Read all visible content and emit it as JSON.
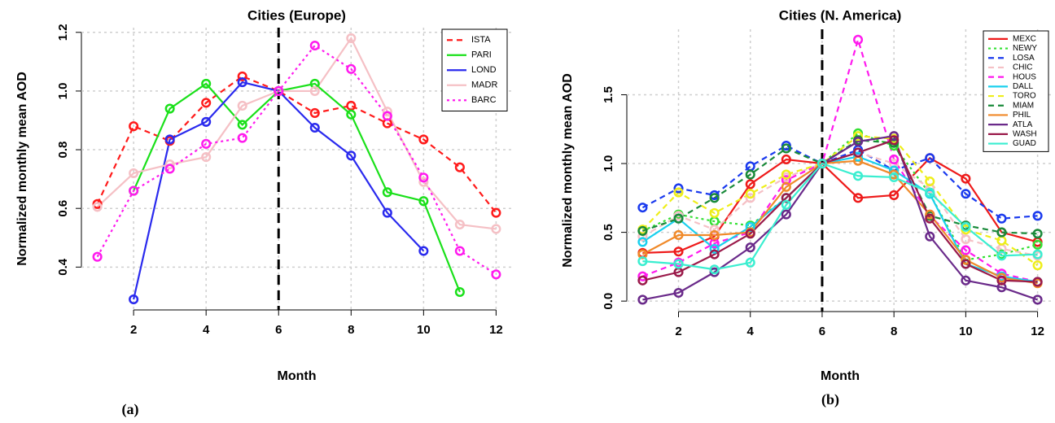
{
  "chart_data": [
    {
      "type": "line",
      "title": "Cities (Europe)",
      "xlabel": "Month",
      "ylabel": "Normalized monthly mean AOD",
      "caption": "(a)",
      "x": [
        1,
        2,
        3,
        4,
        5,
        6,
        7,
        8,
        9,
        10,
        11,
        12
      ],
      "xlim": [
        0.56,
        12.44
      ],
      "xticks": [
        2,
        4,
        6,
        8,
        10,
        12
      ],
      "ylim": [
        0.254,
        1.216
      ],
      "yticks": [
        0.4,
        0.6,
        0.8,
        {
          "value": 1,
          "label": "1.0"
        },
        1.2
      ],
      "grid": true,
      "vline": 6,
      "legend": "top-right",
      "series": [
        {
          "name": "ISTA",
          "color": "#ff1a1a",
          "dash": "dashed",
          "values": [
            0.615,
            0.88,
            0.83,
            0.96,
            1.05,
            1.0,
            0.925,
            0.95,
            0.89,
            0.835,
            0.74,
            0.585
          ]
        },
        {
          "name": "PARI",
          "color": "#1ae01a",
          "dash": "solid",
          "values": [
            null,
            0.66,
            0.94,
            1.025,
            0.885,
            1.0,
            1.025,
            0.92,
            0.655,
            0.625,
            0.315,
            null
          ]
        },
        {
          "name": "LOND",
          "color": "#2a2aee",
          "dash": "solid",
          "values": [
            null,
            0.29,
            0.835,
            0.895,
            1.03,
            1.0,
            0.875,
            0.78,
            0.585,
            0.455,
            null,
            null
          ]
        },
        {
          "name": "MADR",
          "color": "#f5c0c5",
          "dash": "solid",
          "values": [
            0.605,
            0.72,
            0.75,
            0.775,
            0.95,
            1.0,
            1.0,
            1.18,
            0.93,
            0.69,
            0.545,
            0.53
          ]
        },
        {
          "name": "BARC",
          "color": "#ff1aee",
          "dash": "dotted",
          "values": [
            0.435,
            0.66,
            0.735,
            0.82,
            0.84,
            1.0,
            1.155,
            1.075,
            0.915,
            0.705,
            0.455,
            0.375
          ]
        }
      ]
    },
    {
      "type": "line",
      "title": "Cities (N. America)",
      "xlabel": "Month",
      "ylabel": "Normalized monthly mean AOD",
      "caption": "(b)",
      "x": [
        1,
        2,
        3,
        4,
        5,
        6,
        7,
        8,
        9,
        10,
        11,
        12
      ],
      "xlim": [
        0.56,
        12.44
      ],
      "xticks": [
        2,
        4,
        6,
        8,
        10,
        12
      ],
      "ylim": [
        -0.076,
        1.976
      ],
      "yticks": [
        {
          "value": 0,
          "label": "0.0"
        },
        0.5,
        {
          "value": 1,
          "label": "1.0"
        },
        1.5
      ],
      "grid": true,
      "vline": 6,
      "legend": "top-right",
      "series": [
        {
          "name": "MEXC",
          "color": "#ee1a1a",
          "dash": "solid",
          "values": [
            0.35,
            0.36,
            0.47,
            0.85,
            1.03,
            1.0,
            0.75,
            0.77,
            1.04,
            0.89,
            0.5,
            0.43
          ]
        },
        {
          "name": "NEWY",
          "color": "#33e033",
          "dash": "dotted",
          "values": [
            0.51,
            0.63,
            0.58,
            0.55,
            0.75,
            1.0,
            1.22,
            1.13,
            0.78,
            0.3,
            0.34,
            0.41
          ]
        },
        {
          "name": "LOSA",
          "color": "#1a3aee",
          "dash": "dashed",
          "values": [
            0.68,
            0.82,
            0.77,
            0.98,
            1.13,
            1.0,
            1.1,
            0.95,
            1.04,
            0.78,
            0.6,
            0.62
          ]
        },
        {
          "name": "CHIC",
          "color": "#f5c0c5",
          "dash": "dashed",
          "values": [
            0.47,
            0.62,
            0.52,
            0.75,
            0.9,
            1.0,
            1.08,
            1.0,
            0.82,
            0.45,
            0.38,
            0.33
          ]
        },
        {
          "name": "HOUS",
          "color": "#ff1aee",
          "dash": "dashed",
          "values": [
            0.18,
            0.28,
            0.42,
            0.5,
            0.88,
            1.0,
            1.9,
            1.03,
            0.62,
            0.37,
            0.2,
            0.14
          ]
        },
        {
          "name": "DALL",
          "color": "#1ad0ee",
          "dash": "solid",
          "values": [
            0.43,
            0.6,
            0.38,
            0.54,
            0.75,
            1.0,
            1.05,
            0.95,
            0.78,
            0.27,
            0.18,
            0.14
          ]
        },
        {
          "name": "TORO",
          "color": "#eeee1a",
          "dash": "dashed",
          "values": [
            0.52,
            0.79,
            0.64,
            0.78,
            0.92,
            1.0,
            1.2,
            1.18,
            0.87,
            0.52,
            0.44,
            0.26
          ]
        },
        {
          "name": "MIAM",
          "color": "#1a8a3a",
          "dash": "dashed",
          "values": [
            0.51,
            0.6,
            0.75,
            0.92,
            1.11,
            1.0,
            1.17,
            1.15,
            0.62,
            0.55,
            0.5,
            0.49
          ]
        },
        {
          "name": "PHIL",
          "color": "#f08a2a",
          "dash": "solid",
          "values": [
            0.34,
            0.48,
            0.48,
            0.5,
            0.83,
            1.0,
            1.02,
            0.92,
            0.63,
            0.3,
            0.17,
            0.13
          ]
        },
        {
          "name": "ATLA",
          "color": "#6a2a8a",
          "dash": "solid",
          "values": [
            0.01,
            0.06,
            0.21,
            0.39,
            0.63,
            1.0,
            1.16,
            1.2,
            0.47,
            0.15,
            0.1,
            0.01
          ]
        },
        {
          "name": "WASH",
          "color": "#9a1a4a",
          "dash": "solid",
          "values": [
            0.15,
            0.21,
            0.34,
            0.49,
            0.75,
            1.0,
            1.08,
            1.17,
            0.6,
            0.27,
            0.15,
            0.14
          ]
        },
        {
          "name": "GUAD",
          "color": "#3aeed0",
          "dash": "solid",
          "values": [
            0.29,
            0.27,
            0.23,
            0.28,
            0.7,
            1.0,
            0.91,
            0.9,
            0.79,
            0.54,
            0.33,
            0.34
          ]
        }
      ]
    }
  ]
}
